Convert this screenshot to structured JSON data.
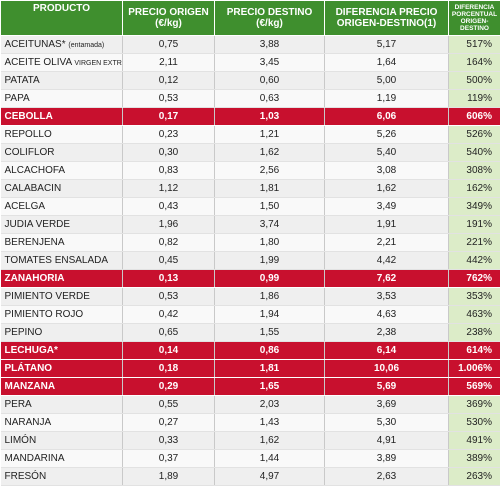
{
  "headers": {
    "producto": "PRODUCTO",
    "origen": "PRECIO ORIGEN (€/kg)",
    "destino": "PRECIO DESTINO (€/kg)",
    "diferencia": "DIFERENCIA PRECIO ORIGEN-DESTINO(1)",
    "porcentual": "DIFERENCIA PORCENTUAL ORIGEN-DESTINO"
  },
  "colors": {
    "header_green": "#3f8f2e",
    "highlight_red": "#c8102e",
    "pct_column": "#dcecc8"
  },
  "rows": [
    {
      "name": "ACEITUNAS*",
      "note": "(entamada)",
      "origen": "0,75",
      "destino": "3,88",
      "diferencia": "5,17",
      "pct": "517%",
      "highlight": false
    },
    {
      "name": "ACEITE OLIVA",
      "note": "VIRGEN EXTRA*",
      "origen": "2,11",
      "destino": "3,45",
      "diferencia": "1,64",
      "pct": "164%",
      "highlight": false
    },
    {
      "name": "PATATA",
      "note": "",
      "origen": "0,12",
      "destino": "0,60",
      "diferencia": "5,00",
      "pct": "500%",
      "highlight": false
    },
    {
      "name": "PAPA",
      "note": "",
      "origen": "0,53",
      "destino": "0,63",
      "diferencia": "1,19",
      "pct": "119%",
      "highlight": false
    },
    {
      "name": "CEBOLLA",
      "note": "",
      "origen": "0,17",
      "destino": "1,03",
      "diferencia": "6,06",
      "pct": "606%",
      "highlight": true
    },
    {
      "name": "REPOLLO",
      "note": "",
      "origen": "0,23",
      "destino": "1,21",
      "diferencia": "5,26",
      "pct": "526%",
      "highlight": false
    },
    {
      "name": "COLIFLOR",
      "note": "",
      "origen": "0,30",
      "destino": "1,62",
      "diferencia": "5,40",
      "pct": "540%",
      "highlight": false
    },
    {
      "name": "ALCACHOFA",
      "note": "",
      "origen": "0,83",
      "destino": "2,56",
      "diferencia": "3,08",
      "pct": "308%",
      "highlight": false
    },
    {
      "name": "CALABACIN",
      "note": "",
      "origen": "1,12",
      "destino": "1,81",
      "diferencia": "1,62",
      "pct": "162%",
      "highlight": false
    },
    {
      "name": "ACELGA",
      "note": "",
      "origen": "0,43",
      "destino": "1,50",
      "diferencia": "3,49",
      "pct": "349%",
      "highlight": false
    },
    {
      "name": "JUDIA VERDE",
      "note": "",
      "origen": "1,96",
      "destino": "3,74",
      "diferencia": "1,91",
      "pct": "191%",
      "highlight": false
    },
    {
      "name": "BERENJENA",
      "note": "",
      "origen": "0,82",
      "destino": "1,80",
      "diferencia": "2,21",
      "pct": "221%",
      "highlight": false
    },
    {
      "name": "TOMATES ENSALADA",
      "note": "",
      "origen": "0,45",
      "destino": "1,99",
      "diferencia": "4,42",
      "pct": "442%",
      "highlight": false
    },
    {
      "name": "ZANAHORIA",
      "note": "",
      "origen": "0,13",
      "destino": "0,99",
      "diferencia": "7,62",
      "pct": "762%",
      "highlight": true
    },
    {
      "name": "PIMIENTO VERDE",
      "note": "",
      "origen": "0,53",
      "destino": "1,86",
      "diferencia": "3,53",
      "pct": "353%",
      "highlight": false
    },
    {
      "name": "PIMIENTO ROJO",
      "note": "",
      "origen": "0,42",
      "destino": "1,94",
      "diferencia": "4,63",
      "pct": "463%",
      "highlight": false
    },
    {
      "name": "PEPINO",
      "note": "",
      "origen": "0,65",
      "destino": "1,55",
      "diferencia": "2,38",
      "pct": "238%",
      "highlight": false
    },
    {
      "name": "LECHUGA*",
      "note": "",
      "origen": "0,14",
      "destino": "0,86",
      "diferencia": "6,14",
      "pct": "614%",
      "highlight": true
    },
    {
      "name": "PLÁTANO",
      "note": "",
      "origen": "0,18",
      "destino": "1,81",
      "diferencia": "10,06",
      "pct": "1.006%",
      "highlight": true
    },
    {
      "name": "MANZANA",
      "note": "",
      "origen": "0,29",
      "destino": "1,65",
      "diferencia": "5,69",
      "pct": "569%",
      "highlight": true
    },
    {
      "name": "PERA",
      "note": "",
      "origen": "0,55",
      "destino": "2,03",
      "diferencia": "3,69",
      "pct": "369%",
      "highlight": false
    },
    {
      "name": "NARANJA",
      "note": "",
      "origen": "0,27",
      "destino": "1,43",
      "diferencia": "5,30",
      "pct": "530%",
      "highlight": false
    },
    {
      "name": "LIMÓN",
      "note": "",
      "origen": "0,33",
      "destino": "1,62",
      "diferencia": "4,91",
      "pct": "491%",
      "highlight": false
    },
    {
      "name": "MANDARINA",
      "note": "",
      "origen": "0,37",
      "destino": "1,44",
      "diferencia": "3,89",
      "pct": "389%",
      "highlight": false
    },
    {
      "name": "FRESÓN",
      "note": "",
      "origen": "1,89",
      "destino": "4,97",
      "diferencia": "2,63",
      "pct": "263%",
      "highlight": false
    }
  ]
}
